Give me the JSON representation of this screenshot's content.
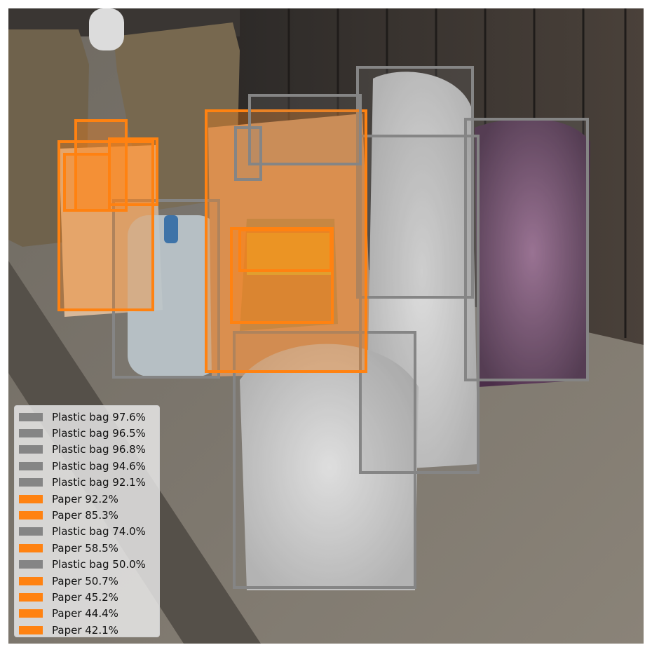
{
  "image": {
    "description_icon": "photo-scene",
    "colors": {
      "plastic_bag": "#858585",
      "paper": "#ff8211"
    }
  },
  "detections": [
    {
      "label": "Plastic bag",
      "score": "97.6%",
      "kind": "plastic_bag"
    },
    {
      "label": "Plastic bag",
      "score": "96.5%",
      "kind": "plastic_bag"
    },
    {
      "label": "Plastic bag",
      "score": "96.8%",
      "kind": "plastic_bag"
    },
    {
      "label": "Plastic bag",
      "score": "94.6%",
      "kind": "plastic_bag"
    },
    {
      "label": "Plastic bag",
      "score": "92.1%",
      "kind": "plastic_bag"
    },
    {
      "label": "Paper",
      "score": "92.2%",
      "kind": "paper"
    },
    {
      "label": "Paper",
      "score": "85.3%",
      "kind": "paper"
    },
    {
      "label": "Plastic bag",
      "score": "74.0%",
      "kind": "plastic_bag"
    },
    {
      "label": "Paper",
      "score": "58.5%",
      "kind": "paper"
    },
    {
      "label": "Plastic bag",
      "score": "50.0%",
      "kind": "plastic_bag"
    },
    {
      "label": "Paper",
      "score": "50.7%",
      "kind": "paper"
    },
    {
      "label": "Paper",
      "score": "45.2%",
      "kind": "paper"
    },
    {
      "label": "Paper",
      "score": "44.4%",
      "kind": "paper"
    },
    {
      "label": "Paper",
      "score": "42.1%",
      "kind": "paper"
    }
  ],
  "legend": {
    "entries": [
      "Plastic bag 97.6%",
      "Plastic bag 96.5%",
      "Plastic bag 96.8%",
      "Plastic bag 94.6%",
      "Plastic bag 92.1%",
      "Paper 92.2%",
      "Paper 85.3%",
      "Plastic bag 74.0%",
      "Paper 58.5%",
      "Plastic bag 50.0%",
      "Paper 50.7%",
      "Paper 45.2%",
      "Paper 44.4%",
      "Paper 42.1%"
    ]
  }
}
